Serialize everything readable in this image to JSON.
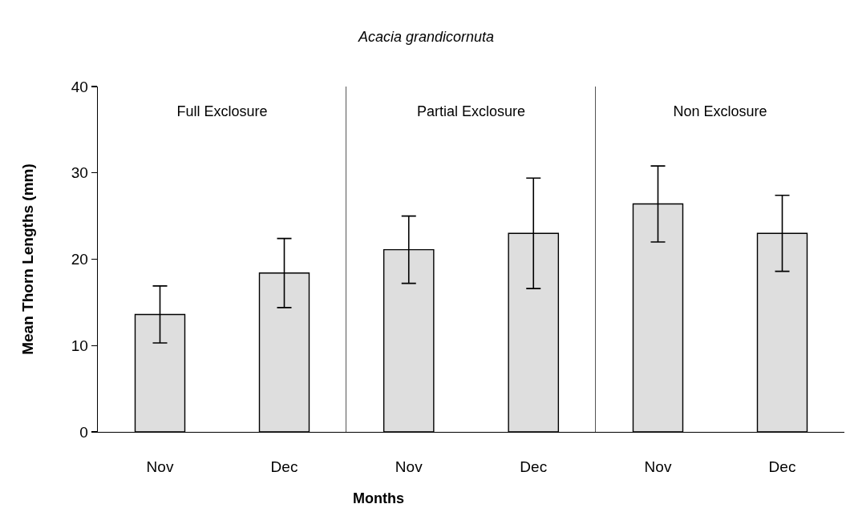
{
  "chart_data": [
    {
      "type": "bar",
      "title": "Full Exclosure",
      "ylabel": "Mean Thorn Lengths (mm)",
      "categories": [
        "Nov",
        "Dec"
      ],
      "values": [
        13.6,
        18.4
      ],
      "errors": [
        3.3,
        4.0
      ],
      "color": "#dedede",
      "ylim": [
        0,
        40
      ],
      "yticks": [
        0,
        10,
        20,
        30,
        40
      ],
      "grid": false
    },
    {
      "type": "bar",
      "title": "Partial Exclosure",
      "xlabel": "Months",
      "annotations": [
        "Acacia grandicornuta"
      ],
      "categories": [
        "Nov",
        "Dec"
      ],
      "values": [
        21.1,
        23.0
      ],
      "errors": [
        3.9,
        6.4
      ],
      "color": "#dedede",
      "ylim": [
        0,
        40
      ],
      "yticks": [
        0,
        10,
        20,
        30,
        40
      ],
      "tick_labels": "x",
      "grid": false
    },
    {
      "type": "bar",
      "title": "Non Exclosure",
      "categories": [
        "Nov",
        "Dec"
      ],
      "values": [
        26.4,
        23.0
      ],
      "errors": [
        4.4,
        4.4
      ],
      "color": "#dedede",
      "ylim": [
        0,
        40
      ],
      "yticks": [
        0,
        10,
        20,
        30,
        40
      ],
      "tick_labels": "x",
      "grid": false
    }
  ]
}
